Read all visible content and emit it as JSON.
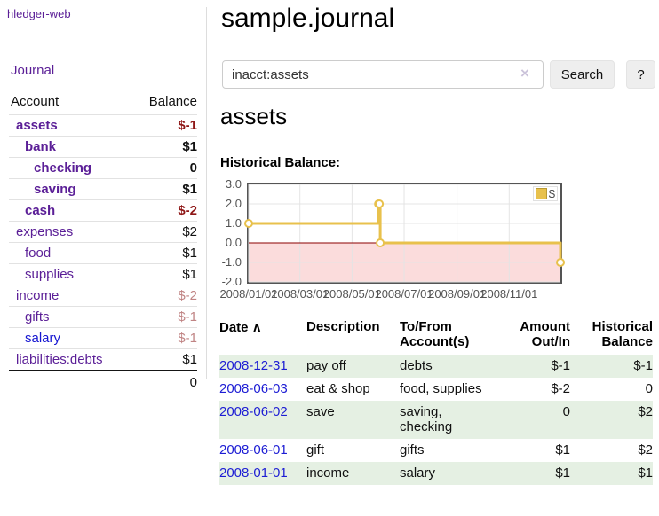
{
  "app": {
    "brand": "hledger-web",
    "nav_journal": "Journal"
  },
  "sidebar": {
    "header": {
      "account": "Account",
      "balance": "Balance"
    },
    "rows": [
      {
        "name": "assets",
        "balance": "$-1",
        "indent": 1,
        "bold": true,
        "neg": "strong"
      },
      {
        "name": "bank",
        "balance": "$1",
        "indent": 2,
        "bold": true
      },
      {
        "name": "checking",
        "balance": "0",
        "indent": 3,
        "bold": true
      },
      {
        "name": "saving",
        "balance": "$1",
        "indent": 3,
        "bold": true
      },
      {
        "name": "cash",
        "balance": "$-2",
        "indent": 2,
        "bold": true,
        "neg": "strong"
      },
      {
        "name": "expenses",
        "balance": "$2",
        "indent": 1
      },
      {
        "name": "food",
        "balance": "$1",
        "indent": 2
      },
      {
        "name": "supplies",
        "balance": "$1",
        "indent": 2
      },
      {
        "name": "income",
        "balance": "$-2",
        "indent": 1,
        "neg": "soft"
      },
      {
        "name": "gifts",
        "balance": "$-1",
        "indent": 2,
        "neg": "soft"
      },
      {
        "name": "salary",
        "balance": "$-1",
        "indent": 2,
        "neg": "soft",
        "link": "blue"
      },
      {
        "name": "liabilities:debts",
        "balance": "$1",
        "indent": 1
      }
    ],
    "total": "0"
  },
  "header": {
    "title": "sample.journal"
  },
  "search": {
    "value": "inacct:assets",
    "clear_icon": "×",
    "button_label": "Search",
    "help_label": "?"
  },
  "account_page": {
    "title": "assets",
    "chart_heading": "Historical Balance:"
  },
  "chart_data": {
    "type": "line",
    "title": "Historical Balance:",
    "legend": [
      {
        "label": "$",
        "color": "#e8c14c"
      }
    ],
    "legend_position": "top-right",
    "grid": true,
    "grid_color": "#e4e4e4",
    "zero_line_color": "#8b0000",
    "negative_region_fill": "#fbdcdc",
    "x_range": [
      "2008-01-01",
      "2008-12-31"
    ],
    "ylim": [
      -2,
      3
    ],
    "y_ticks": [
      {
        "v": 3,
        "label": "3.0"
      },
      {
        "v": 2,
        "label": "2.0"
      },
      {
        "v": 1,
        "label": "1.0"
      },
      {
        "v": 0,
        "label": "0.0"
      },
      {
        "v": -1,
        "label": "-1.0"
      },
      {
        "v": -2,
        "label": "-2.0"
      }
    ],
    "x_ticks": [
      {
        "date": "2008-01-01",
        "label": "2008/01/01"
      },
      {
        "date": "2008-03-01",
        "label": "2008/03/01"
      },
      {
        "date": "2008-05-01",
        "label": "2008/05/01"
      },
      {
        "date": "2008-07-01",
        "label": "2008/07/01"
      },
      {
        "date": "2008-09-01",
        "label": "2008/09/01"
      },
      {
        "date": "2008-11-01",
        "label": "2008/11/01"
      }
    ],
    "series": [
      {
        "name": "$",
        "color": "#e8c14c",
        "style": "step",
        "points": [
          {
            "x": "2008-01-01",
            "y": 1
          },
          {
            "x": "2008-06-01",
            "y": 2
          },
          {
            "x": "2008-06-02",
            "y": 2
          },
          {
            "x": "2008-06-03",
            "y": 0
          },
          {
            "x": "2008-12-31",
            "y": -1
          }
        ]
      }
    ]
  },
  "table": {
    "sort_icon": "∧",
    "columns": [
      "Date",
      "Description",
      "To/From\nAccount(s)",
      "Amount\nOut/In",
      "Historical\nBalance"
    ],
    "rows": [
      {
        "date": "2008-12-31",
        "description": "pay off",
        "accounts": "debts",
        "amount": "$-1",
        "amount_neg": true,
        "balance": "$-1",
        "balance_neg": true,
        "shade": true
      },
      {
        "date": "2008-06-03",
        "description": "eat & shop",
        "accounts": "food, supplies",
        "amount": "$-2",
        "amount_neg": true,
        "balance": "0",
        "balance_neg": false,
        "shade": false
      },
      {
        "date": "2008-06-02",
        "description": "save",
        "accounts": "saving, checking",
        "amount": "0",
        "amount_neg": false,
        "balance": "$2",
        "balance_neg": false,
        "shade": true
      },
      {
        "date": "2008-06-01",
        "description": "gift",
        "accounts": "gifts",
        "amount": "$1",
        "amount_neg": false,
        "balance": "$2",
        "balance_neg": false,
        "shade": false
      },
      {
        "date": "2008-01-01",
        "description": "income",
        "accounts": "salary",
        "amount": "$1",
        "amount_neg": false,
        "balance": "$1",
        "balance_neg": false,
        "shade": true
      }
    ]
  }
}
